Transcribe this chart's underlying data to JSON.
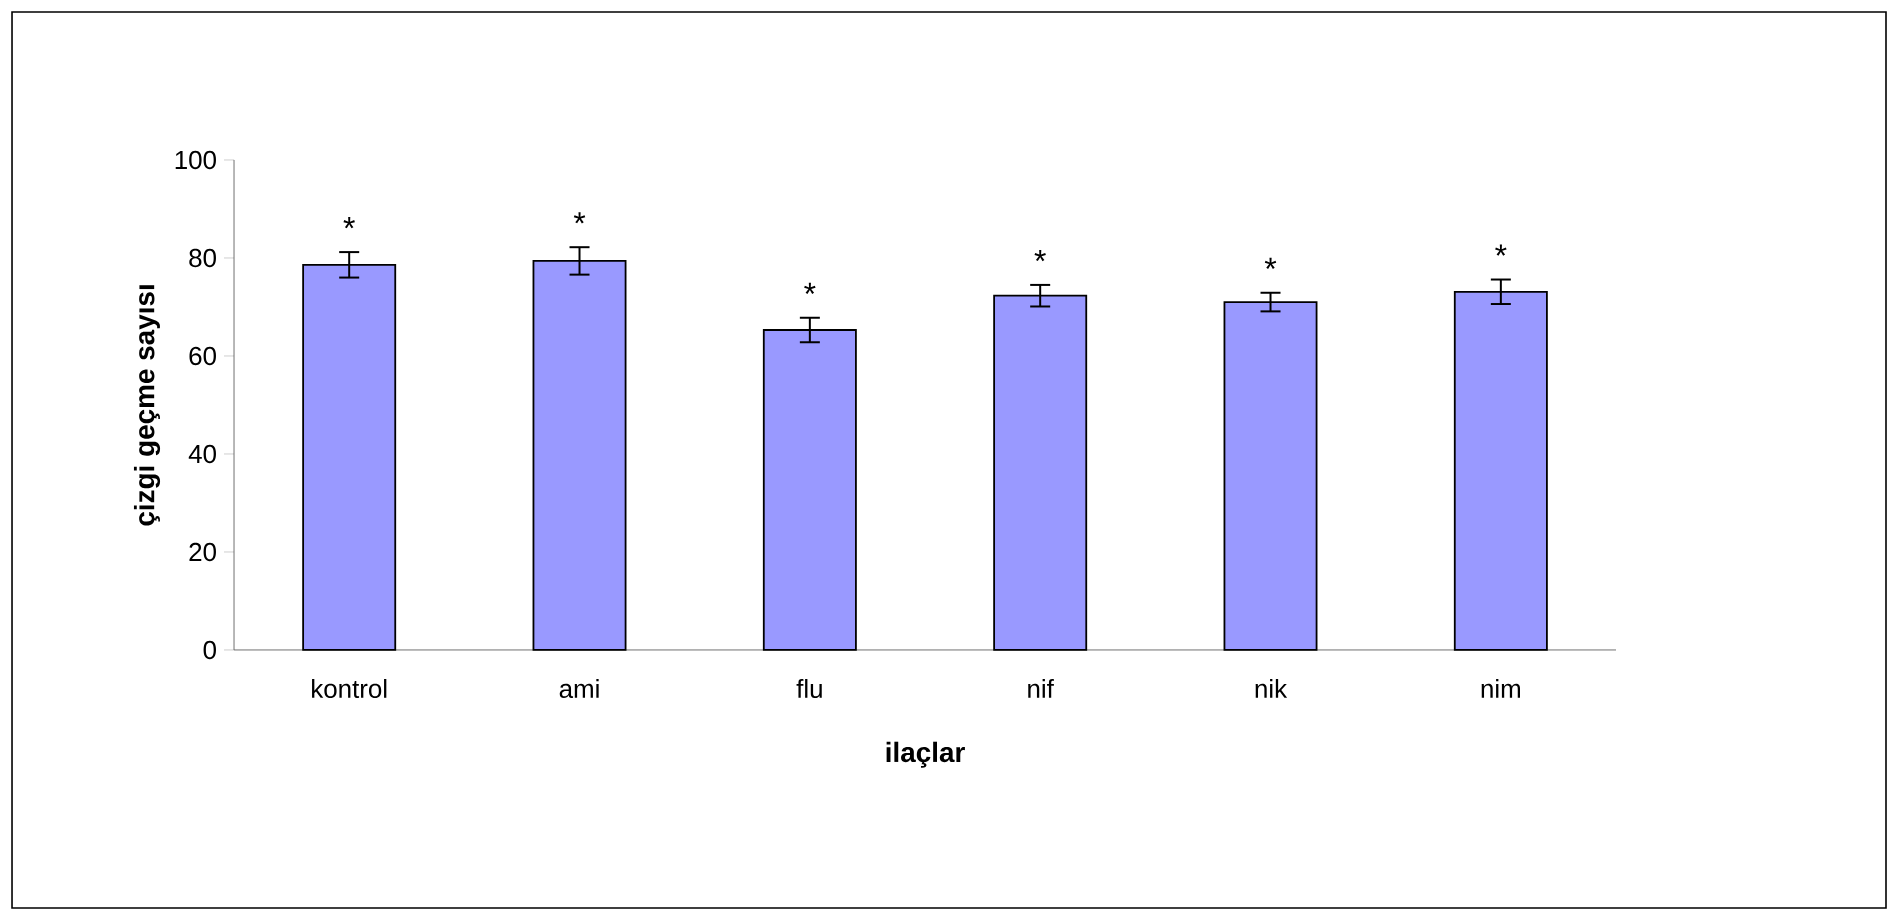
{
  "chart_data": {
    "type": "bar",
    "xlabel": "ilaçlar",
    "ylabel": "çizgi geçme sayısı",
    "categories": [
      "kontrol",
      "ami",
      "flu",
      "nif",
      "nik",
      "nim"
    ],
    "values": [
      78.6,
      79.4,
      65.3,
      72.3,
      71.0,
      73.1
    ],
    "errors": [
      2.6,
      2.8,
      2.5,
      2.2,
      1.9,
      2.5
    ],
    "color": "#9999ff",
    "ylim": [
      0,
      100
    ],
    "yticks": [
      0,
      20,
      40,
      60,
      80,
      100
    ],
    "grid": false,
    "annotations": [
      "*",
      "*",
      "*",
      "*",
      "*",
      "*"
    ]
  }
}
